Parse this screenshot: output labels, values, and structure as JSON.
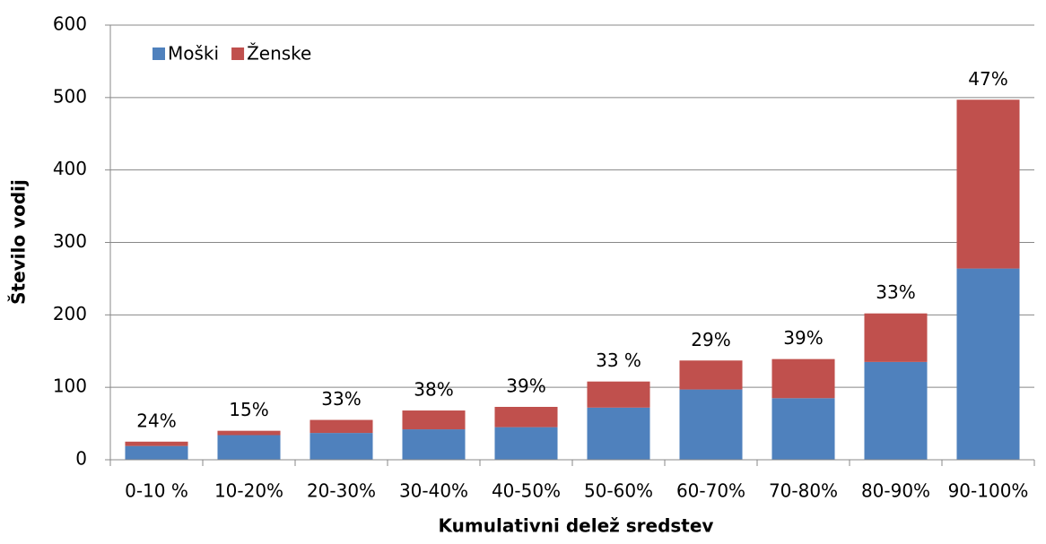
{
  "chart_data": {
    "type": "stacked_bar",
    "x_label": "Kumulativni delež sredstev",
    "y_label": "Število vodij",
    "categories": [
      "0-10 %",
      "10-20%",
      "20-30%",
      "30-40%",
      "40-50%",
      "50-60%",
      "60-70%",
      "70-80%",
      "80-90%",
      "90-100%"
    ],
    "series": [
      {
        "name": "Moški",
        "color": "#4f81bd",
        "values": [
          19,
          34,
          37,
          42,
          45,
          72,
          97,
          85,
          135,
          264
        ]
      },
      {
        "name": "Ženske",
        "color": "#c0504d",
        "values": [
          6,
          6,
          18,
          26,
          28,
          36,
          40,
          54,
          67,
          233
        ]
      }
    ],
    "bar_labels": [
      "24%",
      "15%",
      "33%",
      "38%",
      "39%",
      "33 %",
      "29%",
      "39%",
      "33%",
      "47%"
    ],
    "ylim": [
      0,
      600
    ],
    "yticks": [
      0,
      100,
      200,
      300,
      400,
      500,
      600
    ],
    "grid": true,
    "legend": "upper left"
  }
}
